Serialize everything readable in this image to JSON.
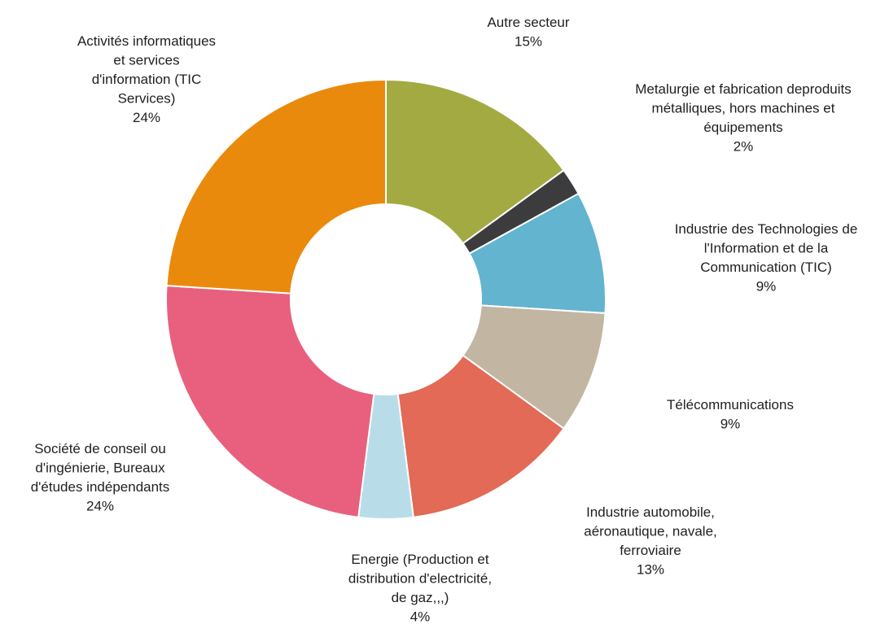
{
  "chart_data": {
    "type": "pie",
    "donut": true,
    "start_category": "Autre secteur",
    "direction": "clockwise",
    "slices": [
      {
        "label_lines": [
          "Autre secteur"
        ],
        "value_label": "15%",
        "value": 15,
        "color": "#a3aa42"
      },
      {
        "label_lines": [
          "Metalurgie et fabrication deproduits",
          "métalliques, hors machines et",
          "équipements"
        ],
        "value_label": "2%",
        "value": 2,
        "color": "#3c3c3e"
      },
      {
        "label_lines": [
          "Industrie des Technologies de",
          "l'Information et de la",
          "Communication (TIC)"
        ],
        "value_label": "9%",
        "value": 9,
        "color": "#62b4cf"
      },
      {
        "label_lines": [
          "Télécommunications"
        ],
        "value_label": "9%",
        "value": 9,
        "color": "#c2b5a2"
      },
      {
        "label_lines": [
          "Industrie automobile,",
          "aéronautique, navale,",
          "ferroviaire"
        ],
        "value_label": "13%",
        "value": 13,
        "color": "#e26a56"
      },
      {
        "label_lines": [
          "Energie (Production et",
          "distribution d'electricité,",
          "de gaz,,,)"
        ],
        "value_label": "4%",
        "value": 4,
        "color": "#b9dde8"
      },
      {
        "label_lines": [
          "Société de conseil ou",
          "d'ingénierie, Bureaux",
          "d'études indépendants"
        ],
        "value_label": "24%",
        "value": 24,
        "color": "#e8607d"
      },
      {
        "label_lines": [
          "Activités informatiques",
          "et services",
          "d'information (TIC",
          "Services)"
        ],
        "value_label": "24%",
        "value": 24,
        "color": "#ea8a0c"
      }
    ]
  }
}
